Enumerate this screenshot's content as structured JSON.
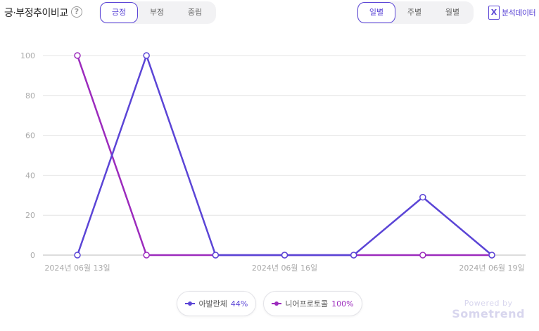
{
  "header": {
    "title": "긍·부정추이비교",
    "help_icon": "question-circle-icon",
    "sentiment_tabs": [
      {
        "label": "긍정",
        "active": true
      },
      {
        "label": "부정",
        "active": false
      },
      {
        "label": "중립",
        "active": false
      }
    ],
    "period_tabs": [
      {
        "label": "일별",
        "active": true
      },
      {
        "label": "주별",
        "active": false
      },
      {
        "label": "월별",
        "active": false
      }
    ],
    "export": {
      "label": "분석데이터",
      "icon": "excel-icon"
    }
  },
  "colors": {
    "accent": "#5b45d6",
    "series1": "#5b45d6",
    "series2": "#9c2bbd"
  },
  "chart_data": {
    "type": "line",
    "x": [
      "2024-06-13",
      "2024-06-14",
      "2024-06-15",
      "2024-06-16",
      "2024-06-17",
      "2024-06-18",
      "2024-06-19"
    ],
    "x_tick_labels": [
      "2024년 06월 13일",
      "2024년 06월 16일",
      "2024년 06월 19일"
    ],
    "x_tick_indices": [
      0,
      3,
      6
    ],
    "ylim": [
      0,
      100
    ],
    "y_ticks": [
      0,
      20,
      40,
      60,
      80,
      100
    ],
    "grid": true,
    "series": [
      {
        "name": "아발란체",
        "values": [
          0,
          100,
          0,
          0,
          0,
          29,
          0
        ],
        "color": "#5b45d6",
        "share": "44%"
      },
      {
        "name": "니어프로토콜",
        "values": [
          100,
          0,
          0,
          0,
          0,
          0,
          0
        ],
        "color": "#9c2bbd",
        "share": "100%"
      }
    ],
    "legend_placement": "bottom"
  },
  "watermark": {
    "top": "Powered by",
    "brand": "Sometrend"
  }
}
